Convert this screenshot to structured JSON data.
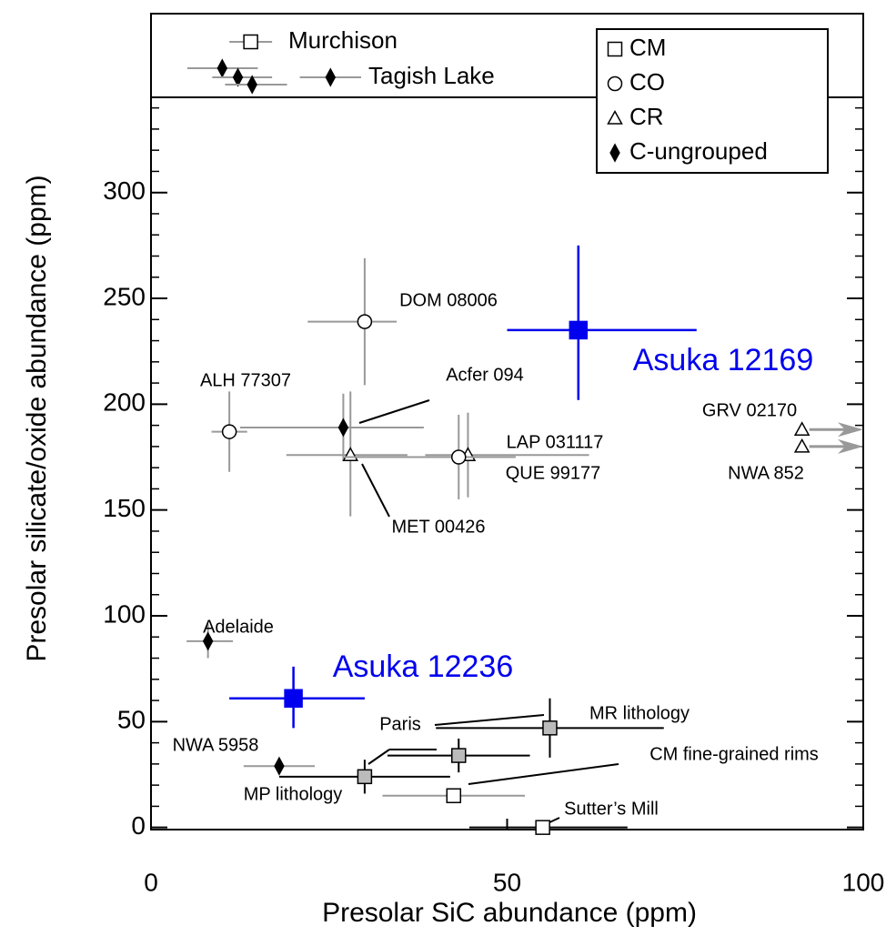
{
  "chart_data": {
    "type": "scatter",
    "xlabel": "Presolar SiC abundance (ppm)",
    "ylabel": "Presolar silicate/oxide abundance (ppm)",
    "xlim": [
      0,
      100
    ],
    "ylim": [
      -1,
      345
    ],
    "xticks": [
      0,
      50,
      100
    ],
    "yticks": [
      0,
      50,
      100,
      150,
      200,
      250,
      300
    ],
    "yminorticks": [
      10,
      20,
      30,
      40,
      60,
      70,
      80,
      90,
      110,
      120,
      130,
      140,
      160,
      170,
      180,
      190,
      210,
      220,
      230,
      240,
      260,
      270,
      280,
      290,
      310,
      320,
      330,
      340
    ],
    "legend": {
      "position": "upper right",
      "entries": [
        {
          "name": "CM",
          "marker": "square"
        },
        {
          "name": "CO",
          "marker": "circle"
        },
        {
          "name": "CR",
          "marker": "triangle"
        },
        {
          "name": "C-ungrouped",
          "marker": "diamond"
        }
      ]
    },
    "points": [
      {
        "label": "ALH 77307",
        "group": "CO",
        "x": 11,
        "y": 187,
        "xerr": [
          2.5,
          2.5
        ],
        "yerr": [
          19,
          19
        ],
        "color": "#999999",
        "fill": "#ffffff"
      },
      {
        "label": "DOM 08006",
        "group": "CO",
        "x": 30,
        "y": 239,
        "xerr": [
          8,
          4.5
        ],
        "yerr": [
          30,
          30
        ],
        "color": "#999999",
        "fill": "#ffffff"
      },
      {
        "label": "Acfer 094",
        "group": "C-ungrouped",
        "x": 27,
        "y": 189,
        "xerr": [
          14.5,
          11.3
        ],
        "yerr": [
          16,
          16
        ],
        "color": "#999999",
        "fill": "#000000"
      },
      {
        "label": "MET 00426",
        "group": "CR",
        "x": 28,
        "y": 176,
        "xerr": [
          9,
          8
        ],
        "yerr": [
          29,
          30
        ],
        "color": "#999999",
        "fill": "#ffffff"
      },
      {
        "label": "LAP 031117",
        "group": "CR",
        "x": 44.5,
        "y": 176,
        "xerr": [
          6,
          17
        ],
        "yerr": [
          20,
          20
        ],
        "color": "#999999",
        "fill": "#ffffff"
      },
      {
        "label": "QUE 99177",
        "group": "CO",
        "x": 43.2,
        "y": 175,
        "xerr": [
          16,
          8
        ],
        "yerr": [
          20,
          20
        ],
        "color": "#999999",
        "fill": "#ffffff"
      },
      {
        "label": "GRV 02170",
        "group": "CR",
        "x": 91.4,
        "y": 188,
        "arrow": "right",
        "color": "#999999",
        "fill": "#ffffff"
      },
      {
        "label": "NWA 852",
        "group": "CR",
        "x": 91.4,
        "y": 180,
        "arrow": "right",
        "color": "#999999",
        "fill": "#ffffff"
      },
      {
        "label": "Adelaide",
        "group": "C-ungrouped",
        "x": 8,
        "y": 88,
        "xerr": [
          3,
          3.5
        ],
        "yerr": [
          8,
          8
        ],
        "color": "#999999",
        "fill": "#000000"
      },
      {
        "label": "Asuka 12236",
        "group": "CM",
        "x": 20,
        "y": 61,
        "xerr": [
          9,
          10
        ],
        "yerr": [
          14,
          15
        ],
        "color": "#0000ee",
        "fill": "#0000ee",
        "highlight": true
      },
      {
        "label": "Asuka 12169",
        "group": "CM",
        "x": 60,
        "y": 235,
        "xerr": [
          10,
          16.6
        ],
        "yerr": [
          33,
          40
        ],
        "color": "#0000ee",
        "fill": "#0000ee",
        "highlight": true
      },
      {
        "label": "NWA 5958",
        "group": "C-ungrouped",
        "x": 18,
        "y": 29,
        "xerr": [
          5,
          5
        ],
        "yerr": [
          4,
          4
        ],
        "color": "#999999",
        "fill": "#000000"
      },
      {
        "label": "MP lithology",
        "group": "CM",
        "x": 30,
        "y": 24,
        "xerr": [
          12,
          12
        ],
        "yerr": [
          8,
          8
        ],
        "color": "#000000",
        "fill": "#bbbbbb"
      },
      {
        "label": "Paris",
        "group": "CM",
        "x": 43.2,
        "y": 34,
        "xerr": [
          10,
          10
        ],
        "yerr": [
          8,
          8
        ],
        "color": "#000000",
        "fill": "#bbbbbb"
      },
      {
        "label": "MR lithology",
        "group": "CM",
        "x": 56,
        "y": 47,
        "xerr": [
          16,
          16
        ],
        "yerr": [
          14,
          14
        ],
        "color": "#000000",
        "fill": "#bbbbbb"
      },
      {
        "label": "CM fine-grained rims",
        "group": "CM",
        "x": 42.5,
        "y": 15,
        "xerr": [
          10,
          10
        ],
        "color": "#999999",
        "fill": "#ffffff"
      },
      {
        "label": "Sutter’s Mill",
        "group": "CM",
        "x": 55,
        "y": 0,
        "xerr": [
          10.3,
          11.9
        ],
        "color": "#000000",
        "fill": "#ffffff"
      }
    ],
    "offscale": [
      {
        "label": "Murchison",
        "group": "CM",
        "fill": "#ffffff",
        "color": "#999999",
        "points": [
          {
            "x": 14,
            "xerr": [
              3,
              3
            ]
          }
        ]
      },
      {
        "label": "Tagish Lake",
        "group": "C-ungrouped",
        "fill": "#000000",
        "color": "#999999",
        "points": [
          {
            "x": 10,
            "xerr": [
              4.9,
              5
            ]
          },
          {
            "x": 12.2,
            "xerr": [
              3.6,
              4.8
            ]
          },
          {
            "x": 14.2,
            "xerr": [
              3.8,
              4.9
            ]
          },
          {
            "x": 25.2,
            "xerr": [
              4.3,
              4.3
            ]
          }
        ]
      }
    ]
  }
}
